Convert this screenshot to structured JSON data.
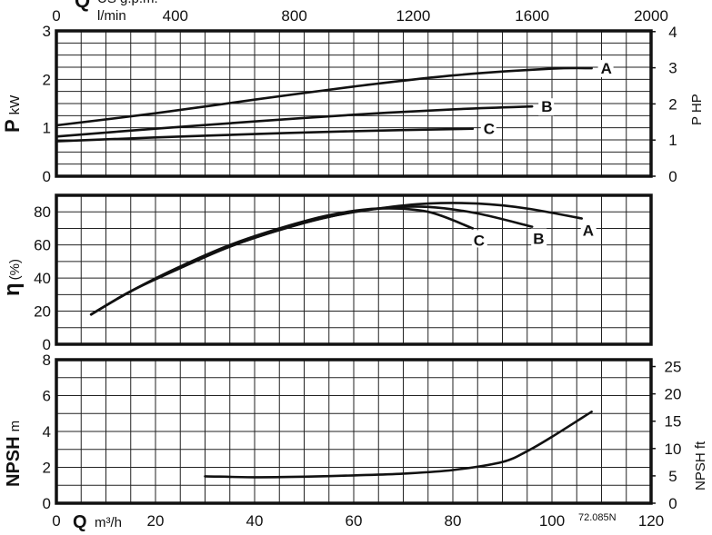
{
  "figure_code": "72.085N",
  "chart_data": [
    {
      "type": "line",
      "panel": "power",
      "ylabel": "P",
      "ylabel_unit": "kW",
      "ylabel_right": "P HP",
      "ylim": [
        0,
        3
      ],
      "yticks": [
        "0",
        "1",
        "2",
        "3"
      ],
      "y2lim": [
        0,
        4.02
      ],
      "y2ticks": [
        "0",
        "1",
        "2",
        "3",
        "4"
      ],
      "xlabel_top": "Q",
      "xlabel_top_unit_1": "US g.p.m.",
      "xlabel_top_unit_2": "l/min",
      "xlim_top": [
        0,
        2000
      ],
      "xticks_top": [
        "0",
        "400",
        "800",
        "1200",
        "1600",
        "2000"
      ],
      "xlim": [
        0,
        120
      ],
      "series": [
        {
          "name": "A",
          "x": [
            0,
            20,
            40,
            60,
            80,
            100,
            108
          ],
          "y": [
            1.05,
            1.3,
            1.58,
            1.85,
            2.08,
            2.22,
            2.23
          ]
        },
        {
          "name": "B",
          "x": [
            0,
            20,
            40,
            60,
            80,
            96
          ],
          "y": [
            0.82,
            0.98,
            1.13,
            1.27,
            1.38,
            1.44
          ]
        },
        {
          "name": "C",
          "x": [
            0,
            20,
            40,
            60,
            84
          ],
          "y": [
            0.72,
            0.8,
            0.87,
            0.93,
            0.98
          ]
        }
      ]
    },
    {
      "type": "line",
      "panel": "efficiency",
      "ylabel": "η",
      "ylabel_unit": "(%)",
      "ylim": [
        0,
        90
      ],
      "yticks": [
        "0",
        "20",
        "40",
        "60",
        "80"
      ],
      "xlim": [
        0,
        120
      ],
      "series": [
        {
          "name": "A",
          "x": [
            7,
            15,
            25,
            35,
            45,
            55,
            65,
            75,
            85,
            95,
            106
          ],
          "y": [
            18,
            32,
            47,
            59,
            69,
            77,
            82,
            85,
            85,
            82,
            76
          ]
        },
        {
          "name": "B",
          "x": [
            7,
            15,
            25,
            35,
            45,
            55,
            65,
            75,
            85,
            96
          ],
          "y": [
            18,
            32,
            46,
            59,
            69,
            77,
            82,
            83,
            79,
            71
          ]
        },
        {
          "name": "C",
          "x": [
            7,
            15,
            25,
            35,
            45,
            55,
            65,
            75,
            84
          ],
          "y": [
            18,
            32,
            47,
            60,
            70,
            78,
            82,
            80,
            70
          ]
        }
      ]
    },
    {
      "type": "line",
      "panel": "npsh",
      "ylabel": "NPSH",
      "ylabel_unit": "m",
      "ylabel_right": "NPSH ft",
      "ylim": [
        0,
        8
      ],
      "yticks": [
        "0",
        "2",
        "4",
        "6",
        "8"
      ],
      "y2lim": [
        0,
        26.25
      ],
      "y2ticks": [
        "0",
        "5",
        "10",
        "15",
        "20",
        "25"
      ],
      "xlabel": "Q",
      "xlabel_unit": "m³/h",
      "xlim": [
        0,
        120
      ],
      "xticks": [
        "0",
        "20",
        "40",
        "60",
        "80",
        "100",
        "120"
      ],
      "series": [
        {
          "x": [
            30,
            40,
            50,
            60,
            70,
            80,
            90,
            95,
            100,
            108
          ],
          "y": [
            1.5,
            1.45,
            1.48,
            1.55,
            1.65,
            1.85,
            2.3,
            2.9,
            3.7,
            5.1
          ]
        }
      ]
    }
  ]
}
